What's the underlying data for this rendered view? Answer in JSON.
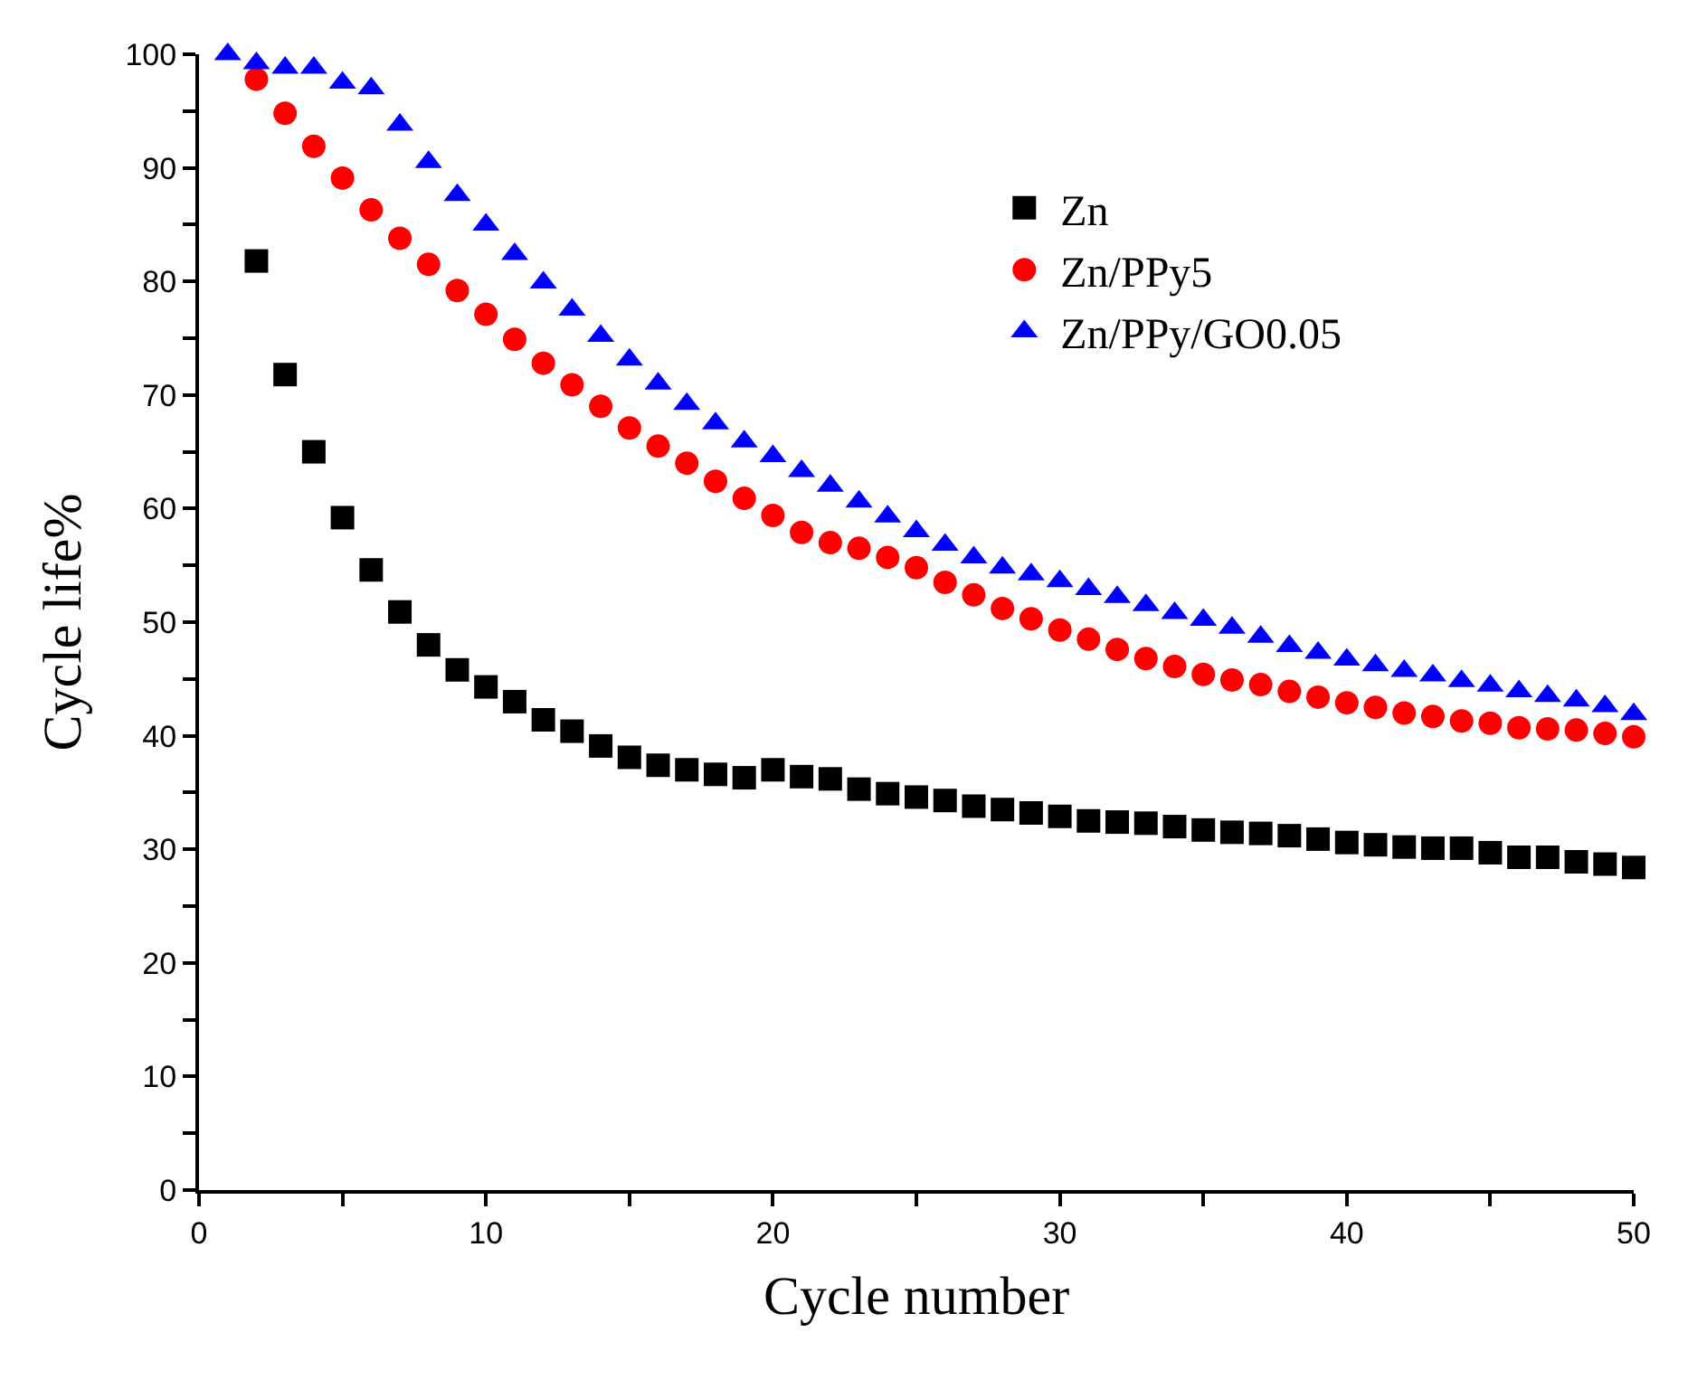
{
  "chart_data": {
    "type": "scatter",
    "xlabel": "Cycle number",
    "ylabel": "Cycle life%",
    "x": [
      1,
      2,
      3,
      4,
      5,
      6,
      7,
      8,
      9,
      10,
      11,
      12,
      13,
      14,
      15,
      16,
      17,
      18,
      19,
      20,
      21,
      22,
      23,
      24,
      25,
      26,
      27,
      28,
      29,
      30,
      31,
      32,
      33,
      34,
      35,
      36,
      37,
      38,
      39,
      40,
      41,
      42,
      43,
      44,
      45,
      46,
      47,
      48,
      49,
      50
    ],
    "series": [
      {
        "name": "Zn",
        "color": "#000000",
        "marker": "square",
        "values": [
          null,
          81.8,
          71.8,
          65,
          59.2,
          54.6,
          50.9,
          48,
          45.8,
          44.3,
          43,
          41.4,
          40.4,
          39.1,
          38.1,
          37.4,
          37,
          36.6,
          36.3,
          37,
          36.4,
          36.2,
          35.3,
          34.9,
          34.6,
          34.3,
          33.8,
          33.5,
          33.2,
          32.9,
          32.5,
          32.4,
          32.3,
          32,
          31.7,
          31.5,
          31.4,
          31.2,
          30.9,
          30.6,
          30.4,
          30.2,
          30.1,
          30.1,
          29.7,
          29.3,
          29.3,
          28.9,
          28.7,
          28.4
        ]
      },
      {
        "name": "Zn/PPy5",
        "color": "#ff0000",
        "marker": "circle",
        "values": [
          null,
          97.8,
          94.8,
          91.9,
          89.1,
          86.3,
          83.8,
          81.5,
          79.2,
          77.1,
          74.9,
          72.8,
          70.9,
          69,
          67.1,
          65.5,
          64,
          62.4,
          60.9,
          59.4,
          57.9,
          57,
          56.5,
          55.7,
          54.8,
          53.5,
          52.4,
          51.2,
          50.3,
          49.3,
          48.5,
          47.6,
          46.8,
          46.1,
          45.4,
          44.9,
          44.5,
          43.9,
          43.4,
          42.9,
          42.5,
          42,
          41.7,
          41.3,
          41.1,
          40.7,
          40.6,
          40.5,
          40.2,
          39.9
        ]
      },
      {
        "name": "Zn/PPy/GO0.05",
        "color": "#0000ff",
        "marker": "triangle",
        "values": [
          100,
          99.2,
          98.8,
          98.8,
          97.5,
          97,
          93.8,
          90.5,
          87.6,
          85,
          82.4,
          79.9,
          77.5,
          75.2,
          73.1,
          71,
          69.2,
          67.5,
          65.9,
          64.6,
          63.3,
          62,
          60.6,
          59.3,
          58,
          56.8,
          55.7,
          54.8,
          54.2,
          53.6,
          52.9,
          52.2,
          51.5,
          50.8,
          50.2,
          49.5,
          48.7,
          47.9,
          47.3,
          46.7,
          46.2,
          45.7,
          45.3,
          44.8,
          44.4,
          43.9,
          43.5,
          43.1,
          42.6,
          41.9
        ]
      }
    ],
    "xlim": [
      0,
      50
    ],
    "ylim": [
      0,
      100
    ],
    "xticks": [
      0,
      {
        "value": 5,
        "label": null
      },
      10,
      {
        "value": 15,
        "label": null
      },
      20,
      {
        "value": 25,
        "label": null
      },
      30,
      {
        "value": 35,
        "label": null
      },
      40,
      {
        "value": 45,
        "label": null
      },
      50
    ],
    "yticks": [
      0,
      {
        "value": 5,
        "label": null
      },
      10,
      {
        "value": 15,
        "label": null
      },
      20,
      {
        "value": 25,
        "label": null
      },
      30,
      {
        "value": 35,
        "label": null
      },
      40,
      {
        "value": 45,
        "label": null
      },
      50,
      {
        "value": 55,
        "label": null
      },
      60,
      {
        "value": 65,
        "label": null
      },
      70,
      {
        "value": 75,
        "label": null
      },
      80,
      {
        "value": 85,
        "label": null
      },
      90,
      {
        "value": 95,
        "label": null
      },
      100
    ],
    "legend": "top right"
  }
}
